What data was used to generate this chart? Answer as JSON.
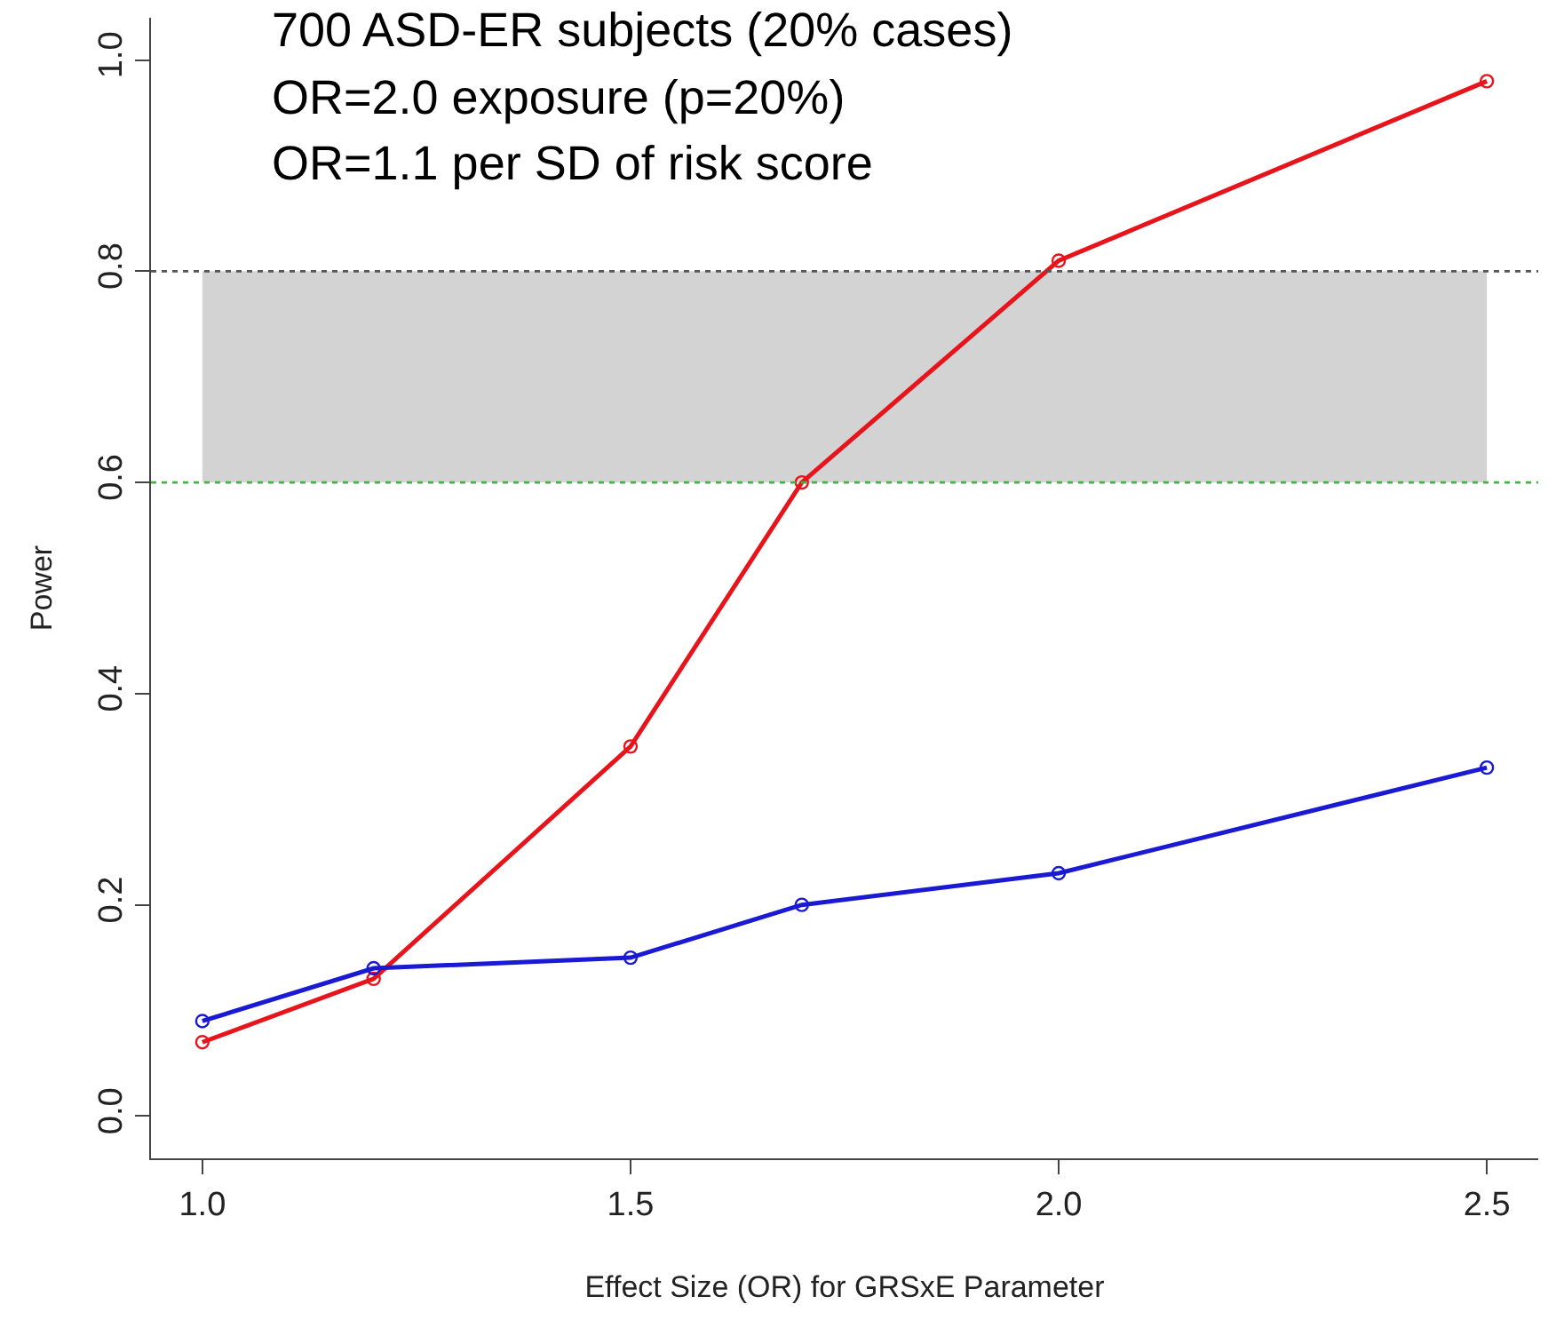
{
  "chart_data": {
    "type": "line",
    "xlabel": "Effect Size (OR) for GRSxE Parameter",
    "ylabel": "Power",
    "x": [
      1.0,
      1.2,
      1.5,
      1.7,
      2.0,
      2.5
    ],
    "series": [
      {
        "color": "#e8141c",
        "values": [
          0.07,
          0.13,
          0.35,
          0.6,
          0.81,
          0.98
        ]
      },
      {
        "color": "#1a1ad4",
        "values": [
          0.09,
          0.14,
          0.15,
          0.2,
          0.23,
          0.33
        ]
      }
    ],
    "xlim": [
      0.94,
      2.56
    ],
    "ylim": [
      -0.04,
      1.04
    ],
    "xticks": [
      {
        "value": 1.0,
        "label": "1.0"
      },
      1.5,
      {
        "value": 2.0,
        "label": "2.0"
      },
      2.5
    ],
    "yticks": [
      {
        "value": 0,
        "label": "0.0"
      },
      0.2,
      0.4,
      0.6,
      0.8,
      {
        "value": 1.0,
        "label": "1.0"
      }
    ],
    "bands": [
      {
        "axis": "y",
        "from": 0.6,
        "to": 0.8,
        "color": "#d3d3d3"
      }
    ],
    "ref_lines": [
      {
        "axis": "y",
        "value": 0.8,
        "color": "#555555",
        "line_style": "dotted"
      },
      {
        "axis": "y",
        "value": 0.6,
        "color": "#3cb83c",
        "line_style": "dotted"
      }
    ],
    "annotations": [
      "700 ASD-ER subjects (20% cases)",
      "OR=2.0 exposure (p=20%)",
      "OR=1.1 per SD of risk score"
    ],
    "marker": "circle",
    "line_style": "solid",
    "grid": false
  }
}
